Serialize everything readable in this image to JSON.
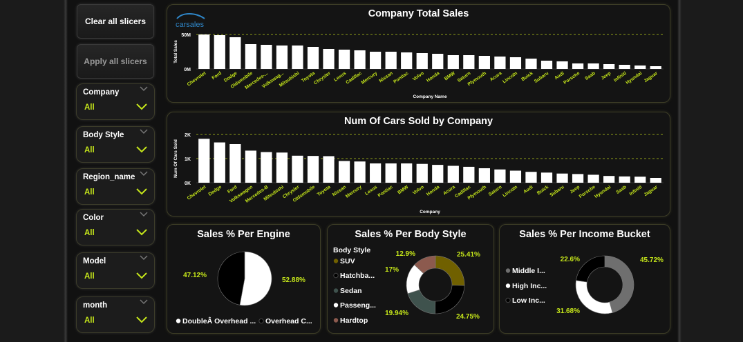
{
  "buttons": {
    "clear": "Clear all slicers",
    "apply": "Apply all slicers"
  },
  "slicers": [
    {
      "title": "Company",
      "value": "All"
    },
    {
      "title": "Body Style",
      "value": "All"
    },
    {
      "title": "Region_name",
      "value": "All"
    },
    {
      "title": "Color",
      "value": "All"
    },
    {
      "title": "Model",
      "value": "All"
    },
    {
      "title": "month",
      "value": "All"
    }
  ],
  "logo_text": "carsales",
  "colors": {
    "accent": "#c6e71a",
    "bar": "#ffffff",
    "background": "#111111"
  },
  "chart_data": [
    {
      "type": "bar",
      "title": "Company Total Sales",
      "xlabel": "Company Name",
      "ylabel": "Total Sales",
      "ylim": [
        0,
        50
      ],
      "yticks": [
        {
          "v": 0,
          "label": "0M"
        },
        {
          "v": 50,
          "label": "50M"
        }
      ],
      "categories": [
        "Chevrolet",
        "Ford",
        "Dodge",
        "Oldsmobile",
        "Mercedes-...",
        "Volkswag...",
        "Mitsubishi",
        "Toyota",
        "Chrysler",
        "Lexus",
        "Cadillac",
        "Mercury",
        "Nissan",
        "Pontiac",
        "Volvo",
        "Honda",
        "BMW",
        "Saturn",
        "Plymouth",
        "Acura",
        "Lincoln",
        "Buick",
        "Subaru",
        "Audi",
        "Porsche",
        "Saab",
        "Jeep",
        "Infiniti",
        "Hyundai",
        "Jaguar"
      ],
      "values": [
        50,
        49,
        46,
        36,
        35,
        34,
        34,
        32,
        29,
        28,
        27,
        25,
        25,
        24,
        23,
        22,
        20,
        20,
        19,
        18,
        17,
        15,
        12,
        11,
        8,
        8,
        7,
        6,
        5,
        4
      ]
    },
    {
      "type": "bar",
      "title": "Num Of Cars Sold by Company",
      "xlabel": "Company",
      "ylabel": "Num Of Cars Sold",
      "ylim": [
        0,
        2
      ],
      "yticks": [
        {
          "v": 0,
          "label": "0K"
        },
        {
          "v": 1,
          "label": "1K"
        },
        {
          "v": 2,
          "label": "2K"
        }
      ],
      "categories": [
        "Chevrolet",
        "Dodge",
        "Ford",
        "Volkswagen",
        "Mercedes-B",
        "Mitsubishi",
        "Chrysler",
        "Oldsmobile",
        "Toyota",
        "Nissan",
        "Mercury",
        "Lexus",
        "Pontiac",
        "BMW",
        "Volvo",
        "Honda",
        "Acura",
        "Cadillac",
        "Plymouth",
        "Saturn",
        "Lincoln",
        "Audi",
        "Buick",
        "Subaru",
        "Jeep",
        "Porsche",
        "Hyundai",
        "Saab",
        "Infiniti",
        "Jaguar"
      ],
      "values": [
        1.82,
        1.67,
        1.6,
        1.33,
        1.27,
        1.25,
        1.12,
        1.11,
        1.1,
        0.9,
        0.88,
        0.8,
        0.8,
        0.8,
        0.78,
        0.74,
        0.7,
        0.66,
        0.6,
        0.55,
        0.5,
        0.45,
        0.42,
        0.38,
        0.36,
        0.33,
        0.28,
        0.26,
        0.25,
        0.2
      ]
    },
    {
      "type": "pie",
      "title": "Sales % Per Engine",
      "slices": [
        {
          "name": "DoubleÂ Overhead ...",
          "value": 52.88,
          "label": "52.88%",
          "color": "#ffffff"
        },
        {
          "name": "Overhead C...",
          "value": 47.12,
          "label": "47.12%",
          "color": "#000000"
        }
      ]
    },
    {
      "type": "pie",
      "title": "Sales % Per Body Style",
      "legend_title": "Body Style",
      "slices": [
        {
          "name": "SUV",
          "value": 25.41,
          "label": "25.41%",
          "color": "#706000"
        },
        {
          "name": "Hatchba...",
          "value": 24.75,
          "label": "24.75%",
          "color": "#000000"
        },
        {
          "name": "Sedan",
          "value": 19.94,
          "label": "19.94%",
          "color": "#3f524d"
        },
        {
          "name": "Passeng...",
          "value": 17,
          "label": "17%",
          "color": "#ffffff"
        },
        {
          "name": "Hardtop",
          "value": 12.9,
          "label": "12.9%",
          "color": "#8c5a4e"
        }
      ]
    },
    {
      "type": "pie",
      "title": "Sales % Per Income Bucket",
      "slices": [
        {
          "name": "Middle I...",
          "value": 45.72,
          "label": "45.72%",
          "color": "#6f6f6f"
        },
        {
          "name": "High Inc...",
          "value": 31.68,
          "label": "31.68%",
          "color": "#ffffff"
        },
        {
          "name": "Low Inc...",
          "value": 22.6,
          "label": "22.6%",
          "color": "#000000"
        }
      ]
    }
  ]
}
